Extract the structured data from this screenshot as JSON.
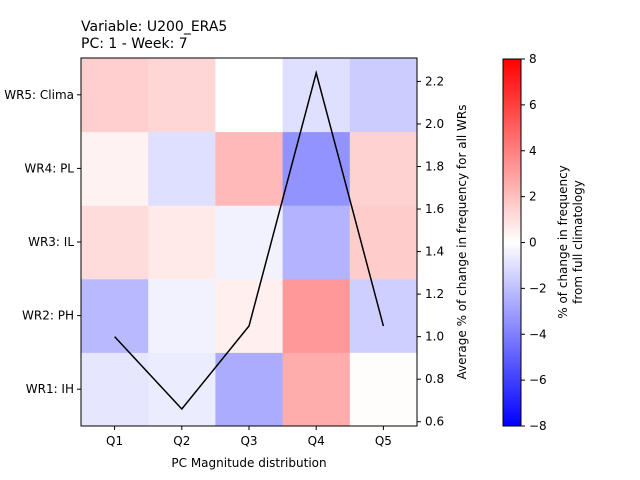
{
  "chart_data": {
    "type": "heatmap",
    "title_lines": [
      "Variable: U200_ERA5",
      "PC: 1 - Week: 7"
    ],
    "xlabel": "PC Magnitude distribution",
    "categories_x": [
      "Q1",
      "Q2",
      "Q3",
      "Q4",
      "Q5"
    ],
    "categories_y": [
      "WR1: IH",
      "WR2: PH",
      "WR3: IL",
      "WR4: PL",
      "WR5: Clima"
    ],
    "heatmap_values": [
      [
        -0.8,
        -0.6,
        -2.6,
        2.6,
        0.1
      ],
      [
        -2.2,
        -0.4,
        0.5,
        3.2,
        -1.5
      ],
      [
        1.1,
        0.7,
        -0.4,
        -2.4,
        1.6
      ],
      [
        0.4,
        -1.0,
        2.2,
        -3.4,
        1.4
      ],
      [
        1.5,
        1.3,
        0.0,
        -1.0,
        -1.6
      ]
    ],
    "colorbar": {
      "label_lines": [
        "% of change in frequency",
        "from full climatology"
      ],
      "min": -8,
      "max": 8,
      "ticks": [
        "−8",
        "−6",
        "−4",
        "−2",
        "0",
        "2",
        "4",
        "6",
        "8"
      ],
      "tick_values": [
        -8,
        -6,
        -4,
        -2,
        0,
        2,
        4,
        6,
        8
      ],
      "colormap": "bwr",
      "low_color": "#0000ff",
      "mid_color": "#ffffff",
      "high_color": "#ff0000"
    },
    "line_series": {
      "name": "Average % of change in frequency for all WRs",
      "ylabel": "Average % of change in frequency for all WRs",
      "ylim": [
        0.58,
        2.31
      ],
      "ticks": [
        "0.6",
        "0.8",
        "1.0",
        "1.2",
        "1.4",
        "1.6",
        "1.8",
        "2.0",
        "2.2"
      ],
      "tick_values": [
        0.6,
        0.8,
        1.0,
        1.2,
        1.4,
        1.6,
        1.8,
        2.0,
        2.2
      ],
      "values": [
        1.0,
        0.66,
        1.05,
        2.24,
        1.05
      ],
      "color": "#000000"
    }
  }
}
